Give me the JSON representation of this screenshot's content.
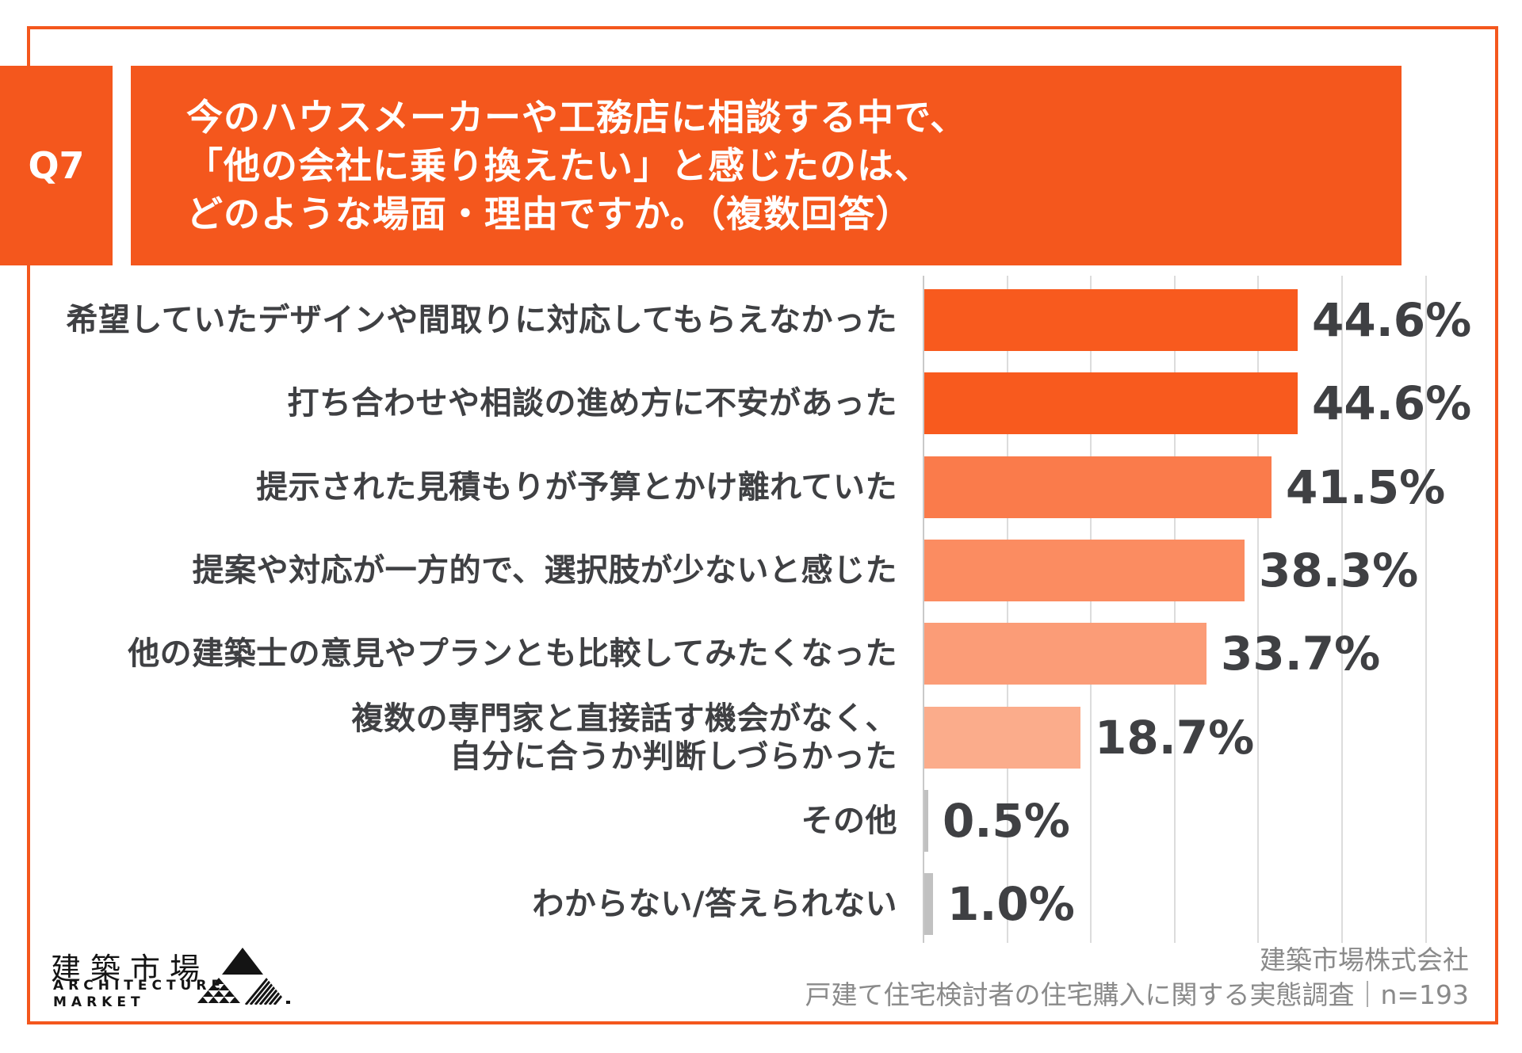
{
  "question": {
    "tag": "Q7",
    "title_lines": [
      "今のハウスメーカーや工務店に相談する中で、",
      "「他の会社に乗り換えたい」と感じたのは、",
      "どのような場面・理由ですか。（複数回答）"
    ]
  },
  "chart_data": {
    "type": "bar",
    "orientation": "horizontal",
    "unit": "%",
    "categories": [
      "希望していたデザインや間取りに対応してもらえなかった",
      "打ち合わせや相談の進め方に不安があった",
      "提示された見積もりが予算とかけ離れていた",
      "提案や対応が一方的で、選択肢が少ないと感じた",
      "他の建築士の意見やプランとも比較してみたくなった",
      "複数の専門家と直接話す機会がなく、\n自分に合うか判断しづらかった",
      "その他",
      "わからない/答えられない"
    ],
    "values": [
      44.6,
      44.6,
      41.5,
      38.3,
      33.7,
      18.7,
      0.5,
      1.0
    ],
    "value_labels": [
      "44.6%",
      "44.6%",
      "41.5%",
      "38.3%",
      "33.7%",
      "18.7%",
      "0.5%",
      "1.0%"
    ],
    "bar_colors": [
      "#F85A1E",
      "#F85A1E",
      "#FA7B4B",
      "#FB8C61",
      "#FB9C77",
      "#FBAC8B",
      "#C1C1C1",
      "#C1C1C1"
    ],
    "xlim": [
      0,
      60
    ],
    "gridline_interval": 10,
    "grid": true,
    "legend": false,
    "value_label_color": "#3F4043",
    "category_label_color": "#3F4043"
  },
  "colors": {
    "brand_orange": "#F4571D",
    "frame_border": "#F4571D",
    "gridline": "#DCDCDC",
    "text_dark": "#3F4043",
    "source_gray": "#8A8A8A",
    "logo_black": "#141414"
  },
  "footer": {
    "logo_jp": "建築市場",
    "logo_en_line1": "ARCHITECTURE",
    "logo_en_line2": "MARKET",
    "source_line1": "建築市場株式会社",
    "source_line2": "戸建て住宅検討者の住宅購入に関する実態調査｜n=193"
  }
}
